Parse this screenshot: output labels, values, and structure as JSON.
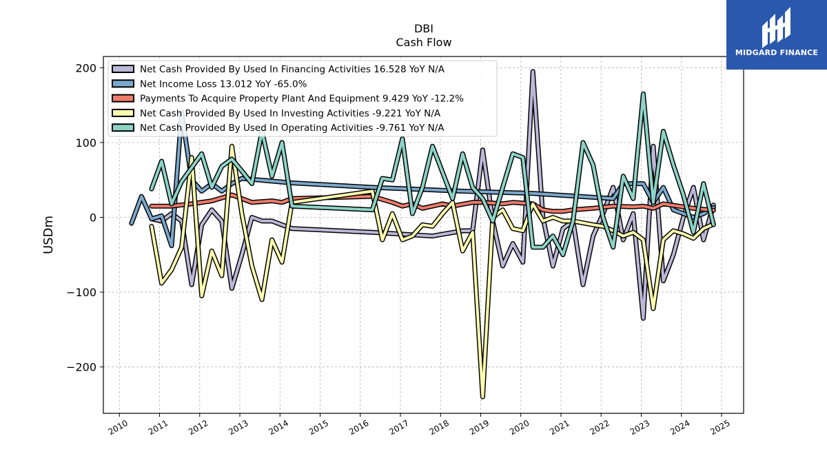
{
  "logo": {
    "text": "MIDGARD FINANCE",
    "background": "#2a58ad"
  },
  "chart_data": {
    "type": "line",
    "title": "DBI",
    "subtitle": "Cash Flow",
    "ylabel": "USDm",
    "xlabel": "",
    "xlim": [
      2009.6,
      2025.55
    ],
    "ylim": [
      -262,
      215
    ],
    "xticks": [
      2010,
      2011,
      2012,
      2013,
      2014,
      2015,
      2016,
      2017,
      2018,
      2019,
      2020,
      2021,
      2022,
      2023,
      2024,
      2025
    ],
    "xtick_labels": [
      "2010",
      "2011",
      "2012",
      "2013",
      "2014",
      "2015",
      "2016",
      "2017",
      "2018",
      "2019",
      "2020",
      "2021",
      "2022",
      "2023",
      "2024",
      "2025"
    ],
    "yticks": [
      -200,
      -100,
      0,
      100,
      200
    ],
    "ytick_labels": [
      "−200",
      "−100",
      "0",
      "100",
      "200"
    ],
    "grid": true,
    "legend_position": "top-left",
    "series": [
      {
        "name": "Net Cash Provided By Used In Financing Activities",
        "legend": "Net Cash Provided By Used In Financing Activities  16.528 YoY N/A",
        "color": "#bcb8d8",
        "points": [
          [
            2010.8,
            -2
          ],
          [
            2011.05,
            -5
          ],
          [
            2011.3,
            5
          ],
          [
            2011.55,
            -5
          ],
          [
            2011.8,
            -90
          ],
          [
            2012.05,
            -10
          ],
          [
            2012.3,
            10
          ],
          [
            2012.55,
            -5
          ],
          [
            2012.8,
            -95
          ],
          [
            2013.05,
            -50
          ],
          [
            2013.3,
            0
          ],
          [
            2013.55,
            -5
          ],
          [
            2013.8,
            -5
          ],
          [
            2014.3,
            -15
          ],
          [
            2016.3,
            -20
          ],
          [
            2017.8,
            -25
          ],
          [
            2018.55,
            -18
          ],
          [
            2018.8,
            -18
          ],
          [
            2019.05,
            90
          ],
          [
            2019.3,
            -5
          ],
          [
            2019.55,
            -65
          ],
          [
            2019.8,
            -35
          ],
          [
            2020.05,
            -60
          ],
          [
            2020.3,
            195
          ],
          [
            2020.55,
            0
          ],
          [
            2020.8,
            -65
          ],
          [
            2021.05,
            -15
          ],
          [
            2021.3,
            -5
          ],
          [
            2021.55,
            -90
          ],
          [
            2021.8,
            -25
          ],
          [
            2022.05,
            5
          ],
          [
            2022.3,
            40
          ],
          [
            2022.55,
            -30
          ],
          [
            2022.8,
            5
          ],
          [
            2023.05,
            -135
          ],
          [
            2023.3,
            95
          ],
          [
            2023.55,
            -85
          ],
          [
            2023.8,
            -50
          ],
          [
            2024.05,
            0
          ],
          [
            2024.3,
            40
          ],
          [
            2024.55,
            -30
          ],
          [
            2024.8,
            16.5
          ]
        ]
      },
      {
        "name": "Net Income Loss",
        "legend": "Net Income Loss  13.012 YoY -65.0%",
        "color": "#7ba8cd",
        "points": [
          [
            2010.3,
            -8
          ],
          [
            2010.55,
            28
          ],
          [
            2010.8,
            -2
          ],
          [
            2011.05,
            2
          ],
          [
            2011.3,
            -38
          ],
          [
            2011.55,
            140
          ],
          [
            2011.8,
            50
          ],
          [
            2012.05,
            35
          ],
          [
            2012.3,
            45
          ],
          [
            2012.55,
            35
          ],
          [
            2012.8,
            45
          ],
          [
            2013.05,
            52
          ],
          [
            2014.3,
            46
          ],
          [
            2016.3,
            40
          ],
          [
            2018.55,
            35
          ],
          [
            2020.3,
            32
          ],
          [
            2022.3,
            25
          ],
          [
            2022.55,
            45
          ],
          [
            2022.8,
            45
          ],
          [
            2023.05,
            45
          ],
          [
            2023.3,
            20
          ],
          [
            2023.55,
            40
          ],
          [
            2023.8,
            10
          ],
          [
            2024.3,
            0
          ],
          [
            2024.55,
            5
          ],
          [
            2024.8,
            13.0
          ]
        ]
      },
      {
        "name": "Payments To Acquire Property Plant And Equipment",
        "legend": "Payments To Acquire Property Plant And Equipment  9.429 YoY -12.2%",
        "color": "#ef7b6b",
        "points": [
          [
            2010.8,
            15
          ],
          [
            2011.3,
            15
          ],
          [
            2011.8,
            18
          ],
          [
            2012.3,
            22
          ],
          [
            2012.8,
            30
          ],
          [
            2013.05,
            25
          ],
          [
            2013.3,
            20
          ],
          [
            2013.8,
            22
          ],
          [
            2014.05,
            20
          ],
          [
            2014.3,
            25
          ],
          [
            2016.3,
            28
          ],
          [
            2016.8,
            20
          ],
          [
            2017.05,
            15
          ],
          [
            2017.3,
            18
          ],
          [
            2017.55,
            12
          ],
          [
            2017.8,
            15
          ],
          [
            2018.05,
            18
          ],
          [
            2018.3,
            15
          ],
          [
            2018.8,
            20
          ],
          [
            2019.05,
            20
          ],
          [
            2019.55,
            18
          ],
          [
            2019.8,
            20
          ],
          [
            2020.3,
            18
          ],
          [
            2020.55,
            10
          ],
          [
            2020.8,
            8
          ],
          [
            2021.05,
            8
          ],
          [
            2021.3,
            10
          ],
          [
            2021.8,
            12
          ],
          [
            2022.3,
            15
          ],
          [
            2022.8,
            14
          ],
          [
            2023.05,
            15
          ],
          [
            2023.3,
            12
          ],
          [
            2023.55,
            18
          ],
          [
            2023.8,
            16
          ],
          [
            2024.3,
            12
          ],
          [
            2024.8,
            9.4
          ]
        ]
      },
      {
        "name": "Net Cash Provided By Used In Investing Activities",
        "legend": "Net Cash Provided By Used In Investing Activities  -9.221 YoY N/A",
        "color": "#fdfdb0",
        "points": [
          [
            2010.8,
            -12
          ],
          [
            2011.05,
            -88
          ],
          [
            2011.3,
            -70
          ],
          [
            2011.55,
            -40
          ],
          [
            2011.8,
            80
          ],
          [
            2012.05,
            -105
          ],
          [
            2012.3,
            -45
          ],
          [
            2012.55,
            -78
          ],
          [
            2012.8,
            95
          ],
          [
            2013.05,
            5
          ],
          [
            2013.3,
            -65
          ],
          [
            2013.55,
            -110
          ],
          [
            2013.8,
            -30
          ],
          [
            2014.05,
            -60
          ],
          [
            2014.3,
            20
          ],
          [
            2016.3,
            35
          ],
          [
            2016.55,
            -30
          ],
          [
            2016.8,
            5
          ],
          [
            2017.05,
            -30
          ],
          [
            2017.3,
            -25
          ],
          [
            2017.55,
            -10
          ],
          [
            2017.8,
            -12
          ],
          [
            2018.05,
            5
          ],
          [
            2018.3,
            20
          ],
          [
            2018.55,
            -45
          ],
          [
            2018.8,
            -20
          ],
          [
            2019.05,
            -240
          ],
          [
            2019.3,
            0
          ],
          [
            2019.55,
            10
          ],
          [
            2019.8,
            -15
          ],
          [
            2020.05,
            -18
          ],
          [
            2020.3,
            18
          ],
          [
            2020.55,
            -5
          ],
          [
            2020.8,
            0
          ],
          [
            2021.05,
            -5
          ],
          [
            2021.3,
            -5
          ],
          [
            2021.8,
            -10
          ],
          [
            2022.05,
            -12
          ],
          [
            2022.3,
            -18
          ],
          [
            2022.55,
            -25
          ],
          [
            2022.8,
            -20
          ],
          [
            2023.05,
            -30
          ],
          [
            2023.3,
            -122
          ],
          [
            2023.55,
            -30
          ],
          [
            2023.8,
            -18
          ],
          [
            2024.05,
            -22
          ],
          [
            2024.3,
            -28
          ],
          [
            2024.55,
            -15
          ],
          [
            2024.8,
            -9.2
          ]
        ]
      },
      {
        "name": "Net Cash Provided By Used In Operating Activities",
        "legend": "Net Cash Provided By Used In Operating Activities  -9.761 YoY N/A",
        "color": "#8dd3c7",
        "points": [
          [
            2010.8,
            38
          ],
          [
            2011.05,
            75
          ],
          [
            2011.3,
            18
          ],
          [
            2011.55,
            48
          ],
          [
            2012.05,
            85
          ],
          [
            2012.3,
            40
          ],
          [
            2012.55,
            68
          ],
          [
            2012.8,
            78
          ],
          [
            2013.05,
            62
          ],
          [
            2013.3,
            45
          ],
          [
            2013.55,
            115
          ],
          [
            2013.8,
            55
          ],
          [
            2014.05,
            100
          ],
          [
            2014.3,
            15
          ],
          [
            2016.3,
            10
          ],
          [
            2016.55,
            52
          ],
          [
            2016.8,
            50
          ],
          [
            2017.05,
            105
          ],
          [
            2017.3,
            5
          ],
          [
            2017.55,
            40
          ],
          [
            2017.8,
            95
          ],
          [
            2018.05,
            60
          ],
          [
            2018.3,
            25
          ],
          [
            2018.55,
            85
          ],
          [
            2018.8,
            40
          ],
          [
            2019.05,
            25
          ],
          [
            2019.3,
            -5
          ],
          [
            2019.55,
            40
          ],
          [
            2019.8,
            85
          ],
          [
            2020.05,
            80
          ],
          [
            2020.3,
            -40
          ],
          [
            2020.55,
            -40
          ],
          [
            2020.8,
            -25
          ],
          [
            2021.05,
            -50
          ],
          [
            2021.3,
            -5
          ],
          [
            2021.55,
            100
          ],
          [
            2021.8,
            70
          ],
          [
            2022.05,
            0
          ],
          [
            2022.3,
            -40
          ],
          [
            2022.55,
            55
          ],
          [
            2022.8,
            25
          ],
          [
            2023.05,
            165
          ],
          [
            2023.3,
            20
          ],
          [
            2023.55,
            115
          ],
          [
            2023.8,
            70
          ],
          [
            2024.05,
            30
          ],
          [
            2024.3,
            -20
          ],
          [
            2024.55,
            45
          ],
          [
            2024.8,
            -9.8
          ]
        ]
      }
    ]
  }
}
